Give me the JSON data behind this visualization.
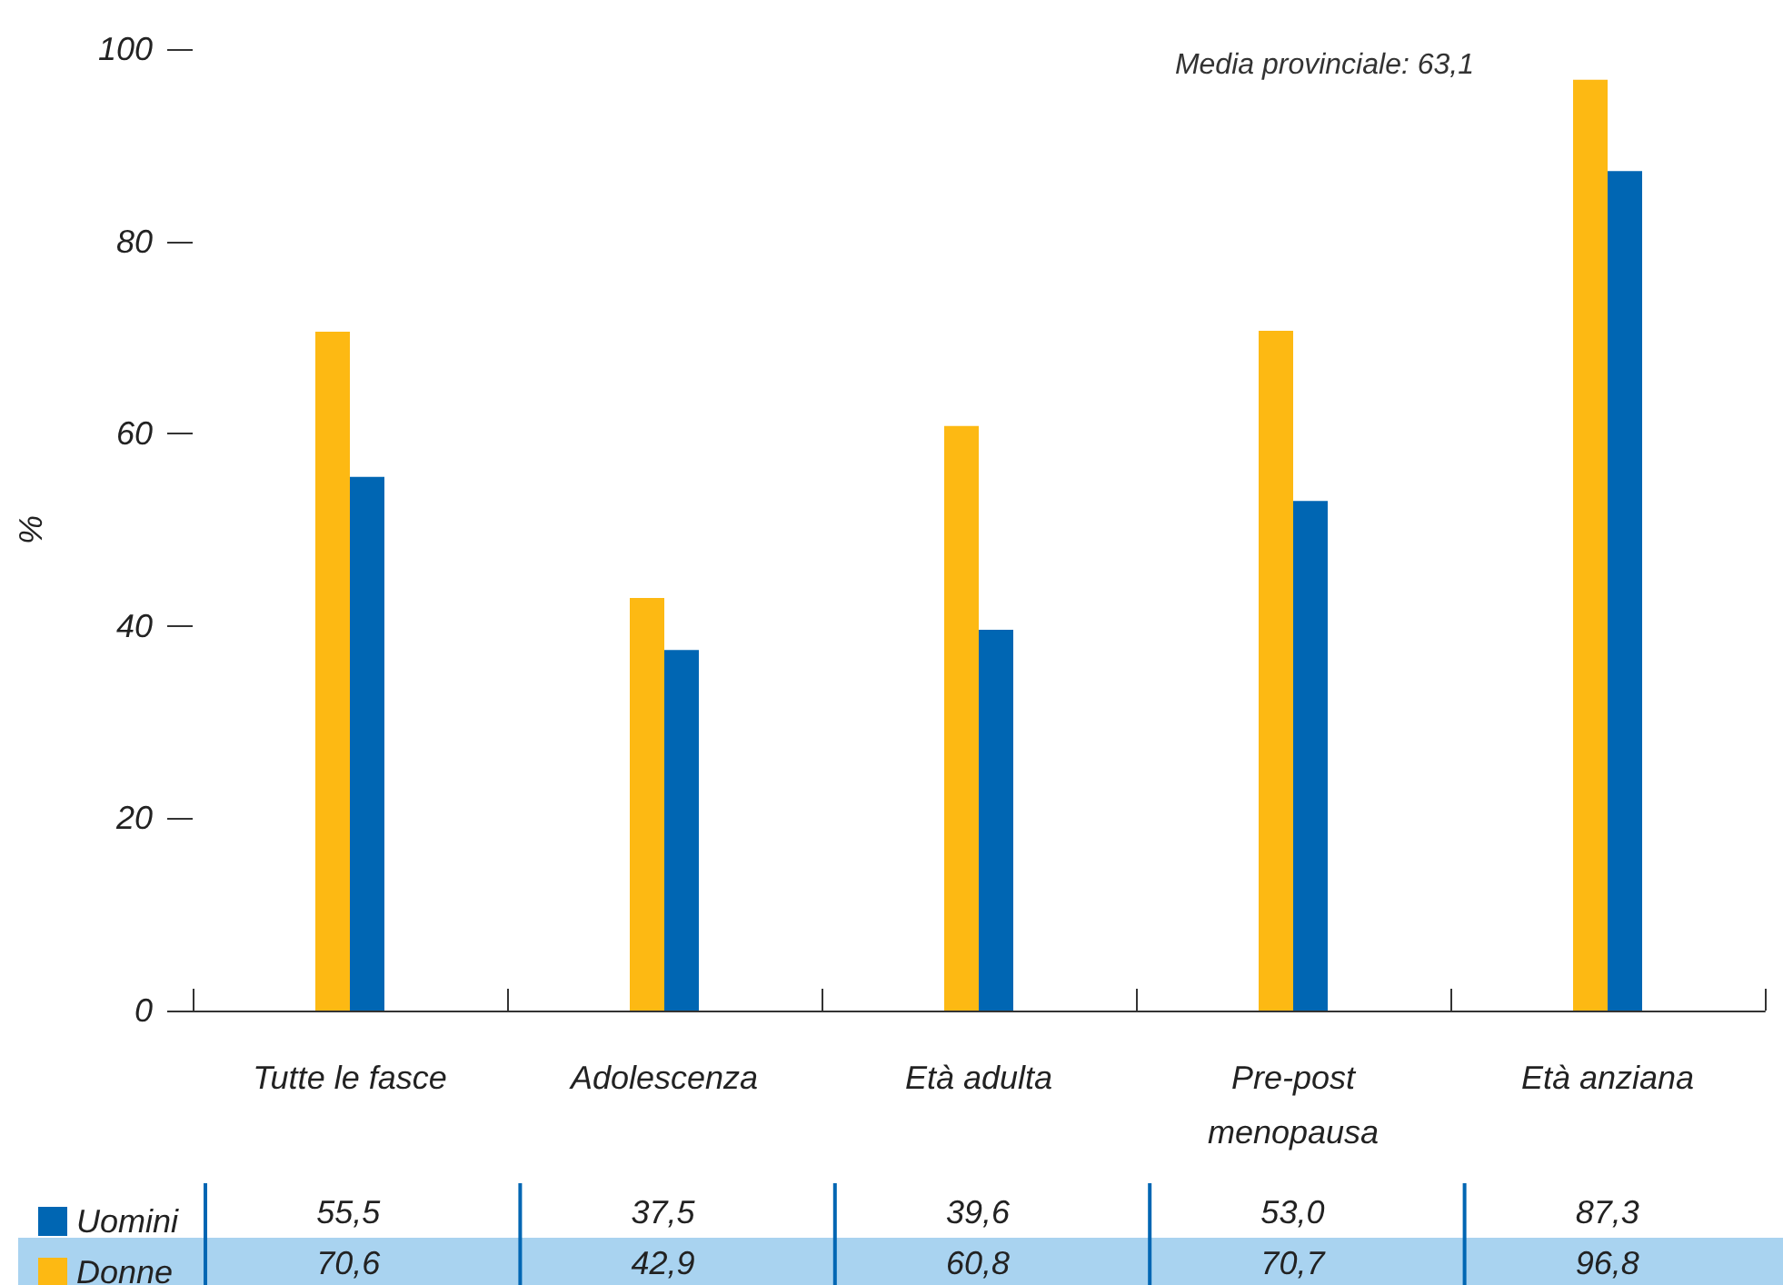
{
  "chart_data": {
    "type": "bar",
    "ylabel": "%",
    "annotations": [
      "Media provinciale: 63,1"
    ],
    "categories": [
      "Tutte le fasce",
      "Adolescenza",
      "Età adulta",
      "Pre-post\nmenopausa",
      "Età anziana"
    ],
    "series": [
      {
        "name": "Donne",
        "color": "#fdb913",
        "values": [
          70.6,
          42.9,
          60.8,
          70.7,
          96.8
        ],
        "value_labels": [
          "70,6",
          "42,9",
          "60,8",
          "70,7",
          "96,8"
        ]
      },
      {
        "name": "Uomini",
        "color": "#0066b3",
        "values": [
          55.5,
          37.5,
          39.6,
          53.0,
          87.3
        ],
        "value_labels": [
          "55,5",
          "37,5",
          "39,6",
          "53,0",
          "87,3"
        ]
      }
    ],
    "ylim": [
      0,
      100
    ],
    "yticks": [
      0,
      20,
      40,
      60,
      80,
      100
    ],
    "grid": false,
    "legend": "bottom left"
  }
}
